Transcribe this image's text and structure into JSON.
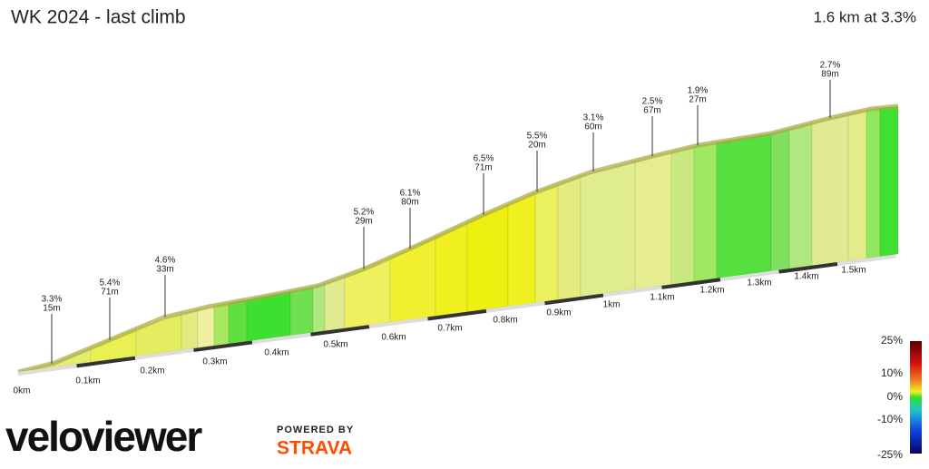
{
  "header": {
    "title": "WK 2024 - last climb",
    "summary": "1.6 km at 3.3%"
  },
  "chart_data": {
    "type": "profile",
    "x_labels": [
      "0km",
      "0.1km",
      "0.2km",
      "0.3km",
      "0.4km",
      "0.5km",
      "0.6km",
      "0.7km",
      "0.8km",
      "0.9km",
      "1km",
      "1.1km",
      "1.2km",
      "1.3km",
      "1.4km",
      "1.5km"
    ],
    "segments": [
      {
        "grade": "3.3%",
        "length": "15m"
      },
      {
        "grade": "5.4%",
        "length": "71m"
      },
      {
        "grade": "4.6%",
        "length": "33m"
      },
      {
        "grade": "5.2%",
        "length": "29m"
      },
      {
        "grade": "6.1%",
        "length": "80m"
      },
      {
        "grade": "6.5%",
        "length": "71m"
      },
      {
        "grade": "5.5%",
        "length": "20m"
      },
      {
        "grade": "3.1%",
        "length": "60m"
      },
      {
        "grade": "2.5%",
        "length": "67m"
      },
      {
        "grade": "1.9%",
        "length": "27m"
      },
      {
        "grade": "2.7%",
        "length": "89m"
      }
    ],
    "scale_labels": [
      "25%",
      "10%",
      "0%",
      "-10%",
      "-25%"
    ]
  },
  "branding": {
    "logo": "veloviewer",
    "powered": "POWERED BY",
    "strava": "STRAVA"
  }
}
